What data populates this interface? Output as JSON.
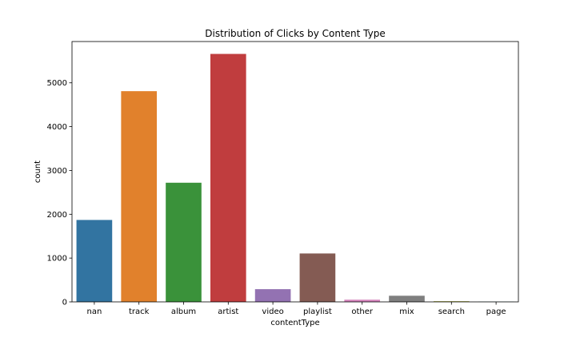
{
  "chart_data": {
    "type": "bar",
    "title": "Distribution of Clicks by Content Type",
    "xlabel": "contentType",
    "ylabel": "count",
    "categories": [
      "nan",
      "track",
      "album",
      "artist",
      "video",
      "playlist",
      "other",
      "mix",
      "search",
      "page"
    ],
    "values": [
      1870,
      4810,
      2720,
      5660,
      290,
      1105,
      50,
      140,
      15,
      4
    ],
    "colors": [
      "#3274a1",
      "#e1812c",
      "#3a923a",
      "#c03d3e",
      "#9372b2",
      "#845b53",
      "#d684bd",
      "#7f7f7f",
      "#a9aa35",
      "#2ea8b7"
    ],
    "ylim": [
      0,
      5943
    ],
    "yticks": [
      0,
      1000,
      2000,
      3000,
      4000,
      5000
    ],
    "grid": false,
    "legend": "none"
  }
}
